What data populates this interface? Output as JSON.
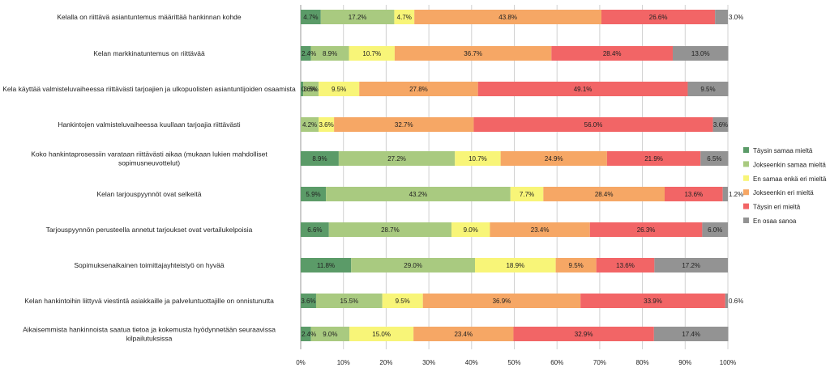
{
  "chart_data": {
    "type": "bar",
    "orientation": "horizontal",
    "stacked": true,
    "xlim": [
      0,
      100
    ],
    "x_ticks": [
      "0%",
      "10%",
      "20%",
      "30%",
      "40%",
      "50%",
      "60%",
      "70%",
      "80%",
      "90%",
      "100%"
    ],
    "grid": true,
    "legend_position": "right",
    "categories": [
      [
        "Kelalla on riittävä asiantuntemus määrittää hankinnan kohde"
      ],
      [
        "Kelan markkinatuntemus on riittävää"
      ],
      [
        "Kela käyttää valmisteluvaiheessa riittävästi tarjoajien ja ulkopuolisten asiantuntijoiden osaamista"
      ],
      [
        "Hankintojen valmisteluvaiheessa kuullaan tarjoajia riittävästi"
      ],
      [
        "Koko hankintaprosessiin varataan riittävästi aikaa (mukaan lukien mahdolliset",
        "sopimusneuvottelut)"
      ],
      [
        "Kelan tarjouspyynnöt ovat selkeitä"
      ],
      [
        "Tarjouspyynnön perusteella annetut tarjoukset ovat vertailukelpoisia"
      ],
      [
        "Sopimuksenaikainen toimittajayhteistyö on hyvää"
      ],
      [
        "Kelan hankintoihin liittyvä viestintä asiakkaille ja palveluntuottajille on onnistunutta"
      ],
      [
        "Aikaisemmista hankinnoista saatua tietoa ja kokemusta hyödynnetään seuraavissa",
        "kilpailutuksissa"
      ]
    ],
    "series": [
      {
        "name": "Täysin samaa mieltä",
        "color": "#5b9b68",
        "values": [
          4.7,
          2.4,
          0.6,
          0.0,
          8.9,
          5.9,
          6.6,
          11.8,
          3.6,
          2.4
        ]
      },
      {
        "name": "Jokseenkin samaa mieltä",
        "color": "#a9ca80",
        "values": [
          17.2,
          8.9,
          3.6,
          4.2,
          27.2,
          43.2,
          28.7,
          29.0,
          15.5,
          9.0
        ]
      },
      {
        "name": "En samaa enkä eri mieltä",
        "color": "#f8f578",
        "values": [
          4.7,
          10.7,
          9.5,
          3.6,
          10.7,
          7.7,
          9.0,
          18.9,
          9.5,
          15.0
        ]
      },
      {
        "name": "Jokseenkin eri mieltä",
        "color": "#f6a765",
        "values": [
          43.8,
          36.7,
          27.8,
          32.7,
          24.9,
          28.4,
          23.4,
          9.5,
          36.9,
          23.4
        ]
      },
      {
        "name": "Täysin eri mieltä",
        "color": "#f26566",
        "values": [
          26.6,
          28.4,
          49.1,
          56.0,
          21.9,
          13.6,
          26.3,
          13.6,
          33.9,
          32.9
        ]
      },
      {
        "name": "En osaa sanoa",
        "color": "#939393",
        "values": [
          3.0,
          13.0,
          9.5,
          3.6,
          6.5,
          1.2,
          6.0,
          17.2,
          0.6,
          17.4
        ]
      }
    ],
    "data_labels": [
      [
        "4.7%",
        "17.2%",
        "4.7%",
        "43.8%",
        "26.6%",
        "3.0%"
      ],
      [
        "2.4%",
        "8.9%",
        "10.7%",
        "36.7%",
        "28.4%",
        "13.0%"
      ],
      [
        "0.6%",
        "3.6%",
        "9.5%",
        "27.8%",
        "49.1%",
        "9.5%"
      ],
      [
        "",
        "4.2%",
        "3.6%",
        "32.7%",
        "56.0%",
        "3.6%"
      ],
      [
        "8.9%",
        "27.2%",
        "10.7%",
        "24.9%",
        "21.9%",
        "6.5%"
      ],
      [
        "5.9%",
        "43.2%",
        "7.7%",
        "28.4%",
        "13.6%",
        "1.2%"
      ],
      [
        "6.6%",
        "28.7%",
        "9.0%",
        "23.4%",
        "26.3%",
        "6.0%"
      ],
      [
        "11.8%",
        "29.0%",
        "18.9%",
        "9.5%",
        "13.6%",
        "17.2%"
      ],
      [
        "3.6%",
        "15.5%",
        "9.5%",
        "36.9%",
        "33.9%",
        "0.6%"
      ],
      [
        "2.4%",
        "9.0%",
        "15.0%",
        "23.4%",
        "32.9%",
        "17.4%"
      ]
    ]
  }
}
